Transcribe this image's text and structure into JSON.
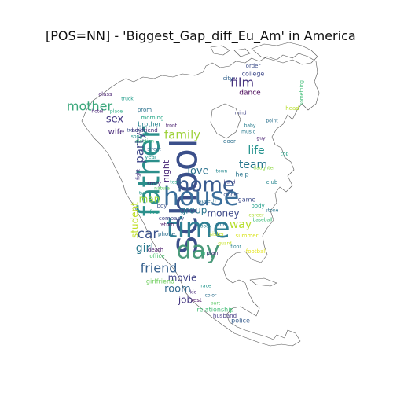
{
  "title": "[POS=NN] - 'Biggest_Gap_diff_Eu_Am' in America",
  "words": [
    {
      "text": "school",
      "color": "#3b4f8a"
    },
    {
      "text": "father",
      "color": "#2b8f8b"
    },
    {
      "text": "house",
      "color": "#3b6e9b"
    },
    {
      "text": "time",
      "color": "#2f7f93"
    },
    {
      "text": "day",
      "color": "#4a9a7a"
    },
    {
      "text": "home",
      "color": "#3a5b8f"
    },
    {
      "text": "mother",
      "color": "#3aa77b"
    },
    {
      "text": "film",
      "color": "#46327e"
    },
    {
      "text": "family",
      "color": "#9fd23a"
    },
    {
      "text": "party",
      "color": "#3f4788"
    },
    {
      "text": "friend",
      "color": "#35608d"
    },
    {
      "text": "car",
      "color": "#3b528b"
    },
    {
      "text": "love",
      "color": "#2c728e"
    },
    {
      "text": "team",
      "color": "#2a788e"
    },
    {
      "text": "life",
      "color": "#21918c"
    },
    {
      "text": "group",
      "color": "#2b758e"
    },
    {
      "text": "money",
      "color": "#3e4a89"
    },
    {
      "text": "girl",
      "color": "#2a788e"
    },
    {
      "text": "movie",
      "color": "#414487"
    },
    {
      "text": "room",
      "color": "#31688e"
    },
    {
      "text": "way",
      "color": "#b5de2b"
    },
    {
      "text": "sex",
      "color": "#443983"
    },
    {
      "text": "man",
      "color": "#9ed93a"
    },
    {
      "text": "job",
      "color": "#453781"
    },
    {
      "text": "student",
      "color": "#c0df25"
    },
    {
      "text": "night",
      "color": "#482677"
    },
    {
      "text": "wife",
      "color": "#482878"
    },
    {
      "text": "brother",
      "color": "#26828e"
    },
    {
      "text": "girlfriend",
      "color": "#6ccd5a"
    },
    {
      "text": "relationship",
      "color": "#3fbc73"
    },
    {
      "text": "company",
      "color": "#404688"
    },
    {
      "text": "police",
      "color": "#365c8d"
    },
    {
      "text": "dance",
      "color": "#440154"
    },
    {
      "text": "college",
      "color": "#3e4989"
    },
    {
      "text": "husband",
      "color": "#443a83"
    },
    {
      "text": "summer",
      "color": "#d8e219"
    },
    {
      "text": "sister",
      "color": "#c2df23"
    },
    {
      "text": "boyfriend",
      "color": "#472c7a"
    },
    {
      "text": "death",
      "color": "#481769"
    },
    {
      "text": "door",
      "color": "#2d708e"
    },
    {
      "text": "story",
      "color": "#482173"
    },
    {
      "text": "game",
      "color": "#3e4c8a"
    },
    {
      "text": "body",
      "color": "#1f9e89"
    },
    {
      "text": "prom",
      "color": "#2c728e"
    },
    {
      "text": "class",
      "color": "#481f70"
    },
    {
      "text": "morning",
      "color": "#21a685"
    },
    {
      "text": "order",
      "color": "#3d4e8a"
    },
    {
      "text": "city",
      "color": "#33638d"
    },
    {
      "text": "fire",
      "color": "#1fa088"
    },
    {
      "text": "football",
      "color": "#e5e419"
    },
    {
      "text": "phone",
      "color": "#2e6e8e"
    },
    {
      "text": "office",
      "color": "#4ac16d"
    },
    {
      "text": "rest",
      "color": "#470d60"
    },
    {
      "text": "boy",
      "color": "#3b528b"
    },
    {
      "text": "end",
      "color": "#31b57b"
    },
    {
      "text": "plan",
      "color": "#472d7b"
    },
    {
      "text": "head",
      "color": "#b8de29"
    },
    {
      "text": "help",
      "color": "#2a768e"
    },
    {
      "text": "club",
      "color": "#25858e"
    },
    {
      "text": "year",
      "color": "#1f988b"
    },
    {
      "text": "hotel",
      "color": "#482475"
    },
    {
      "text": "place",
      "color": "#25ac82"
    },
    {
      "text": "trouble",
      "color": "#3b528b"
    },
    {
      "text": "speech",
      "color": "#2e6f8e"
    },
    {
      "text": "daughter",
      "color": "#8fd744"
    },
    {
      "text": "front",
      "color": "#481b6d"
    },
    {
      "text": "election",
      "color": "#35b779"
    },
    {
      "text": "song",
      "color": "#20928c"
    },
    {
      "text": "book",
      "color": "#277f8e"
    },
    {
      "text": "truck",
      "color": "#1e9c89"
    },
    {
      "text": "dinner",
      "color": "#3b528b"
    },
    {
      "text": "hand",
      "color": "#404387"
    },
    {
      "text": "stone",
      "color": "#2a788e"
    },
    {
      "text": "part",
      "color": "#5ac864"
    },
    {
      "text": "return",
      "color": "#471063"
    },
    {
      "text": "music",
      "color": "#297a8e"
    },
    {
      "text": "test",
      "color": "#20a386"
    },
    {
      "text": "mind",
      "color": "#414487"
    },
    {
      "text": "baby",
      "color": "#287d8e"
    },
    {
      "text": "guy",
      "color": "#482071"
    },
    {
      "text": "point",
      "color": "#2c718e"
    },
    {
      "text": "cop",
      "color": "#1fa287"
    },
    {
      "text": "something",
      "color": "#3dbc74"
    },
    {
      "text": "fight",
      "color": "#453882"
    },
    {
      "text": "nature",
      "color": "#5cc863"
    },
    {
      "text": "town",
      "color": "#24878e"
    },
    {
      "text": "color",
      "color": "#2d708e"
    },
    {
      "text": "kid",
      "color": "#472a7a"
    },
    {
      "text": "race",
      "color": "#1f958b"
    },
    {
      "text": "career",
      "color": "#addc30"
    },
    {
      "text": "baseball",
      "color": "#3aba76"
    },
    {
      "text": "store",
      "color": "#2e6d8e"
    },
    {
      "text": "tv",
      "color": "#20938c"
    },
    {
      "text": "street",
      "color": "#31668e"
    },
    {
      "text": "guard",
      "color": "#c5e021"
    },
    {
      "text": "floor",
      "color": "#27808e"
    }
  ]
}
